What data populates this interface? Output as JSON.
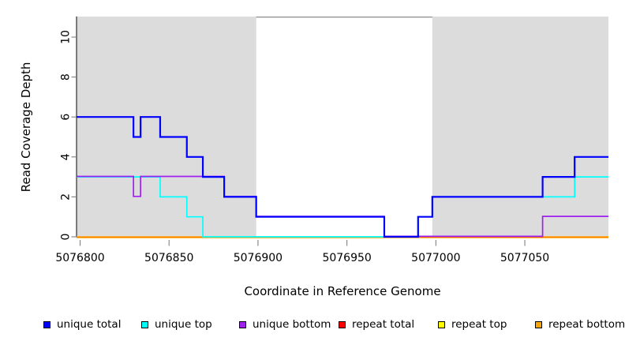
{
  "chart_data": {
    "type": "line",
    "step": "after",
    "title": "",
    "xlabel": "Coordinate in Reference Genome",
    "ylabel": "Read Coverage Depth",
    "xlim": [
      5076798,
      5077097
    ],
    "ylim": [
      0,
      11
    ],
    "xticks": [
      5076800,
      5076850,
      5076900,
      5076950,
      5077000,
      5077050
    ],
    "yticks": [
      0,
      2,
      4,
      6,
      8,
      10
    ],
    "grid": false,
    "legend_position": "bottom",
    "background_color": "#ffffff",
    "shade_color": "#dcdcdc",
    "shaded_regions": [
      {
        "x0": 5076798,
        "x1": 5076899
      },
      {
        "x0": 5076998,
        "x1": 5077097
      }
    ],
    "series": [
      {
        "name": "unique total",
        "color": "#0000ff",
        "points": [
          [
            5076798,
            6
          ],
          [
            5076830,
            5
          ],
          [
            5076834,
            6
          ],
          [
            5076845,
            5
          ],
          [
            5076860,
            4
          ],
          [
            5076869,
            3
          ],
          [
            5076881,
            2
          ],
          [
            5076899,
            1
          ],
          [
            5076971,
            0
          ],
          [
            5076990,
            1
          ],
          [
            5076998,
            2
          ],
          [
            5077060,
            3
          ],
          [
            5077078,
            4
          ],
          [
            5077097,
            4
          ]
        ]
      },
      {
        "name": "unique top",
        "color": "#00ffff",
        "points": [
          [
            5076798,
            3
          ],
          [
            5076845,
            2
          ],
          [
            5076860,
            1
          ],
          [
            5076869,
            0
          ],
          [
            5076990,
            1
          ],
          [
            5076998,
            2
          ],
          [
            5077078,
            3
          ],
          [
            5077097,
            3
          ]
        ]
      },
      {
        "name": "unique bottom",
        "color": "#a020f0",
        "points": [
          [
            5076798,
            3
          ],
          [
            5076830,
            2
          ],
          [
            5076834,
            3
          ],
          [
            5076881,
            2
          ],
          [
            5076899,
            1
          ],
          [
            5076971,
            0
          ],
          [
            5077060,
            1
          ],
          [
            5077097,
            1
          ]
        ]
      },
      {
        "name": "repeat total",
        "color": "#ff0000",
        "points": [
          [
            5076798,
            0
          ],
          [
            5077097,
            0
          ]
        ]
      },
      {
        "name": "repeat top",
        "color": "#ffff00",
        "points": [
          [
            5076798,
            0
          ],
          [
            5077097,
            0
          ]
        ]
      },
      {
        "name": "repeat bottom",
        "color": "#ffa500",
        "points": [
          [
            5076798,
            0
          ],
          [
            5077097,
            0
          ]
        ]
      }
    ]
  }
}
